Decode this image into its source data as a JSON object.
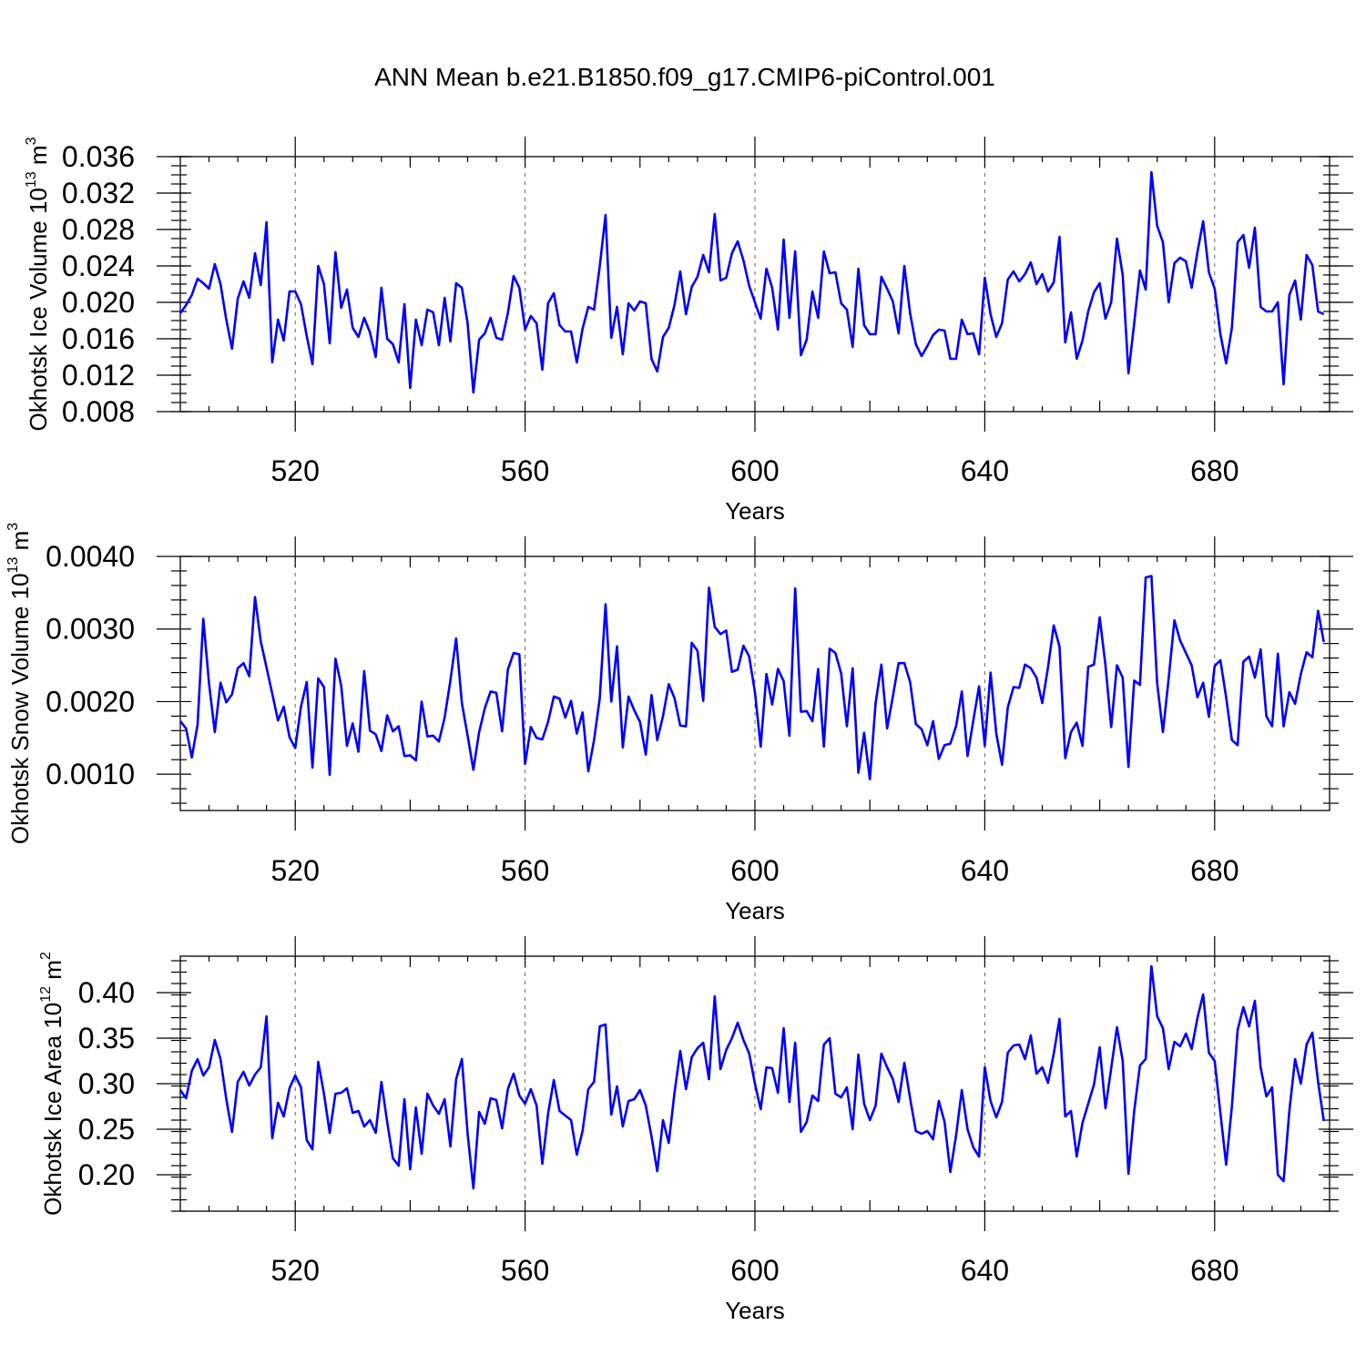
{
  "figure": {
    "title": "ANN Mean b.e21.B1850.f09_g17.CMIP6-piControl.001"
  },
  "chart_data": [
    {
      "type": "line",
      "name": "ice-volume",
      "title": "",
      "xlabel": "Years",
      "ylabel": "Okhotsk Ice Volume 10",
      "ylabel_exp": "13",
      "ylabel_unit": " m",
      "ylabel_unit_exp": "3",
      "xlim": [
        500,
        700
      ],
      "ylim": [
        0.008,
        0.036
      ],
      "xticks": [
        520,
        560,
        600,
        640,
        680
      ],
      "xtick_labels": [
        "520",
        "560",
        "600",
        "640",
        "680"
      ],
      "yticks": [
        0.008,
        0.012,
        0.016,
        0.02,
        0.024,
        0.028,
        0.032,
        0.036
      ],
      "ytick_labels": [
        "0.008",
        "0.012",
        "0.016",
        "0.020",
        "0.024",
        "0.028",
        "0.032",
        "0.036"
      ],
      "grid": "vertical dashed at major x ticks",
      "color": "#0000ff",
      "x_start": 500,
      "values": [
        0.0188,
        0.0197,
        0.0208,
        0.0226,
        0.0221,
        0.0215,
        0.0242,
        0.022,
        0.0181,
        0.0149,
        0.0204,
        0.0223,
        0.0205,
        0.0254,
        0.0219,
        0.0288,
        0.0134,
        0.0181,
        0.0158,
        0.0212,
        0.0212,
        0.0198,
        0.0163,
        0.0132,
        0.024,
        0.022,
        0.0155,
        0.0255,
        0.0194,
        0.0214,
        0.0172,
        0.0162,
        0.0183,
        0.0167,
        0.014,
        0.0216,
        0.016,
        0.0154,
        0.0134,
        0.0198,
        0.0106,
        0.0181,
        0.0153,
        0.0192,
        0.0189,
        0.0153,
        0.0205,
        0.0157,
        0.0221,
        0.0216,
        0.0177,
        0.0101,
        0.0159,
        0.0166,
        0.0183,
        0.0161,
        0.0159,
        0.0188,
        0.0229,
        0.0216,
        0.017,
        0.0185,
        0.0177,
        0.0126,
        0.0199,
        0.021,
        0.0175,
        0.0168,
        0.0168,
        0.0134,
        0.0171,
        0.0195,
        0.0192,
        0.024,
        0.0296,
        0.0161,
        0.0195,
        0.0143,
        0.0199,
        0.0191,
        0.0201,
        0.0199,
        0.0138,
        0.0124,
        0.0162,
        0.0172,
        0.0197,
        0.0234,
        0.0187,
        0.0217,
        0.0228,
        0.0252,
        0.0233,
        0.0297,
        0.0224,
        0.0227,
        0.0254,
        0.0267,
        0.0246,
        0.0218,
        0.02,
        0.0182,
        0.0237,
        0.0216,
        0.017,
        0.0269,
        0.0183,
        0.0256,
        0.0142,
        0.0159,
        0.0212,
        0.0183,
        0.0256,
        0.0232,
        0.0233,
        0.0199,
        0.0192,
        0.0151,
        0.0237,
        0.0175,
        0.0165,
        0.0165,
        0.0228,
        0.0215,
        0.0201,
        0.0166,
        0.024,
        0.0188,
        0.0154,
        0.0141,
        0.0152,
        0.0164,
        0.017,
        0.0169,
        0.0138,
        0.0138,
        0.0181,
        0.0165,
        0.0166,
        0.0143,
        0.0227,
        0.0187,
        0.0162,
        0.0177,
        0.0225,
        0.0234,
        0.0223,
        0.0231,
        0.0244,
        0.022,
        0.0231,
        0.0212,
        0.0222,
        0.0272,
        0.0156,
        0.0189,
        0.0138,
        0.0158,
        0.019,
        0.0211,
        0.0221,
        0.0182,
        0.02,
        0.027,
        0.023,
        0.0122,
        0.0177,
        0.0235,
        0.0214,
        0.0343,
        0.0284,
        0.0266,
        0.02,
        0.0243,
        0.0249,
        0.0245,
        0.0216,
        0.0255,
        0.0289,
        0.0233,
        0.0215,
        0.0165,
        0.0133,
        0.0172,
        0.0266,
        0.0274,
        0.0238,
        0.0282,
        0.0195,
        0.019,
        0.019,
        0.02,
        0.011,
        0.0208,
        0.0224,
        0.0181,
        0.0252,
        0.0241,
        0.019,
        0.0187
      ]
    },
    {
      "type": "line",
      "name": "snow-volume",
      "title": "",
      "xlabel": "Years",
      "ylabel": "Okhotsk Snow Volume 10",
      "ylabel_exp": "13",
      "ylabel_unit": " m",
      "ylabel_unit_exp": "3",
      "xlim": [
        500,
        700
      ],
      "ylim": [
        0.0005,
        0.004
      ],
      "xticks": [
        520,
        560,
        600,
        640,
        680
      ],
      "xtick_labels": [
        "520",
        "560",
        "600",
        "640",
        "680"
      ],
      "yticks": [
        0.001,
        0.002,
        0.003,
        0.004
      ],
      "ytick_labels": [
        "0.0010",
        "0.0020",
        "0.0030",
        "0.0040"
      ],
      "minor_yticks": [
        0.0006,
        0.0008,
        0.0012,
        0.0014,
        0.0016,
        0.0018,
        0.0022,
        0.0024,
        0.0026,
        0.0028,
        0.0032,
        0.0034,
        0.0036,
        0.0038
      ],
      "grid": "vertical dashed at major x ticks",
      "color": "#0000ff",
      "x_start": 500,
      "values": [
        0.00173,
        0.00163,
        0.00123,
        0.00168,
        0.00314,
        0.00225,
        0.00158,
        0.00226,
        0.00199,
        0.0021,
        0.00246,
        0.00253,
        0.00235,
        0.00344,
        0.00283,
        0.00247,
        0.00211,
        0.00174,
        0.00193,
        0.00151,
        0.00136,
        0.00193,
        0.00227,
        0.00109,
        0.00232,
        0.0022,
        0.00099,
        0.00259,
        0.00222,
        0.00139,
        0.0017,
        0.00131,
        0.00242,
        0.0016,
        0.00155,
        0.00132,
        0.00181,
        0.00159,
        0.00166,
        0.00125,
        0.00126,
        0.00119,
        0.002,
        0.00152,
        0.00153,
        0.00145,
        0.00178,
        0.00229,
        0.00287,
        0.00198,
        0.00153,
        0.00106,
        0.00158,
        0.00191,
        0.00214,
        0.00212,
        0.00159,
        0.00244,
        0.00267,
        0.00265,
        0.00114,
        0.00165,
        0.0015,
        0.00148,
        0.00172,
        0.00207,
        0.00204,
        0.00178,
        0.00201,
        0.00156,
        0.00185,
        0.00104,
        0.00147,
        0.00205,
        0.00334,
        0.002,
        0.00276,
        0.00137,
        0.00207,
        0.00188,
        0.00172,
        0.00127,
        0.00209,
        0.00147,
        0.0018,
        0.00224,
        0.00205,
        0.00167,
        0.00166,
        0.00281,
        0.0027,
        0.00201,
        0.00357,
        0.00303,
        0.00293,
        0.00298,
        0.00241,
        0.00244,
        0.00277,
        0.00262,
        0.00213,
        0.00138,
        0.00238,
        0.00196,
        0.00245,
        0.00228,
        0.00153,
        0.00356,
        0.00186,
        0.00187,
        0.00173,
        0.00245,
        0.00138,
        0.00273,
        0.00267,
        0.00239,
        0.00166,
        0.00246,
        0.00102,
        0.00157,
        0.00093,
        0.00198,
        0.00251,
        0.00163,
        0.00207,
        0.00253,
        0.00253,
        0.00227,
        0.00169,
        0.00162,
        0.0014,
        0.00173,
        0.00121,
        0.0014,
        0.00142,
        0.00166,
        0.00214,
        0.00125,
        0.00174,
        0.00221,
        0.00139,
        0.0024,
        0.00156,
        0.00113,
        0.00192,
        0.0022,
        0.00219,
        0.00251,
        0.00246,
        0.00233,
        0.00198,
        0.00247,
        0.00305,
        0.00276,
        0.00122,
        0.00158,
        0.00171,
        0.00139,
        0.00248,
        0.00251,
        0.00316,
        0.0025,
        0.00165,
        0.0025,
        0.00233,
        0.0011,
        0.00229,
        0.00223,
        0.00371,
        0.00373,
        0.00225,
        0.00158,
        0.00232,
        0.00312,
        0.00284,
        0.00267,
        0.0025,
        0.00206,
        0.00226,
        0.00179,
        0.00249,
        0.00257,
        0.00206,
        0.00147,
        0.0014,
        0.00255,
        0.00262,
        0.00233,
        0.00272,
        0.0018,
        0.00166,
        0.00266,
        0.00166,
        0.00213,
        0.00197,
        0.00238,
        0.00268,
        0.00261,
        0.00325,
        0.00282
      ]
    },
    {
      "type": "line",
      "name": "ice-area",
      "title": "",
      "xlabel": "Years",
      "ylabel": "Okhotsk Ice Area 10",
      "ylabel_exp": "12",
      "ylabel_unit": " m",
      "ylabel_unit_exp": "2",
      "xlim": [
        500,
        700
      ],
      "ylim": [
        0.16,
        0.44
      ],
      "xticks": [
        520,
        560,
        600,
        640,
        680
      ],
      "xtick_labels": [
        "520",
        "560",
        "600",
        "640",
        "680"
      ],
      "yticks": [
        0.2,
        0.25,
        0.3,
        0.35,
        0.4
      ],
      "ytick_labels": [
        "0.20",
        "0.25",
        "0.30",
        "0.35",
        "0.40"
      ],
      "grid": "vertical dashed at major x ticks",
      "color": "#0000ff",
      "x_start": 500,
      "values": [
        0.293,
        0.284,
        0.314,
        0.327,
        0.309,
        0.318,
        0.348,
        0.327,
        0.283,
        0.247,
        0.302,
        0.313,
        0.298,
        0.31,
        0.318,
        0.374,
        0.24,
        0.279,
        0.264,
        0.295,
        0.309,
        0.296,
        0.238,
        0.228,
        0.324,
        0.289,
        0.246,
        0.289,
        0.29,
        0.295,
        0.268,
        0.27,
        0.253,
        0.26,
        0.246,
        0.302,
        0.258,
        0.218,
        0.21,
        0.283,
        0.206,
        0.274,
        0.223,
        0.289,
        0.276,
        0.267,
        0.283,
        0.231,
        0.305,
        0.327,
        0.245,
        0.185,
        0.269,
        0.256,
        0.284,
        0.282,
        0.251,
        0.294,
        0.311,
        0.287,
        0.278,
        0.294,
        0.276,
        0.212,
        0.267,
        0.304,
        0.27,
        0.265,
        0.26,
        0.222,
        0.248,
        0.294,
        0.302,
        0.363,
        0.365,
        0.266,
        0.297,
        0.253,
        0.281,
        0.283,
        0.293,
        0.276,
        0.242,
        0.204,
        0.26,
        0.235,
        0.29,
        0.336,
        0.294,
        0.329,
        0.339,
        0.345,
        0.305,
        0.396,
        0.316,
        0.337,
        0.35,
        0.367,
        0.348,
        0.333,
        0.3,
        0.272,
        0.318,
        0.317,
        0.29,
        0.361,
        0.28,
        0.345,
        0.247,
        0.258,
        0.287,
        0.281,
        0.343,
        0.35,
        0.289,
        0.285,
        0.296,
        0.25,
        0.332,
        0.278,
        0.26,
        0.276,
        0.333,
        0.318,
        0.305,
        0.28,
        0.323,
        0.284,
        0.248,
        0.245,
        0.248,
        0.239,
        0.281,
        0.258,
        0.203,
        0.243,
        0.293,
        0.25,
        0.23,
        0.22,
        0.318,
        0.281,
        0.263,
        0.28,
        0.334,
        0.342,
        0.343,
        0.327,
        0.353,
        0.311,
        0.318,
        0.301,
        0.333,
        0.371,
        0.264,
        0.27,
        0.22,
        0.257,
        0.278,
        0.299,
        0.34,
        0.273,
        0.317,
        0.362,
        0.325,
        0.201,
        0.27,
        0.32,
        0.327,
        0.429,
        0.374,
        0.361,
        0.316,
        0.346,
        0.341,
        0.355,
        0.338,
        0.372,
        0.398,
        0.334,
        0.325,
        0.268,
        0.211,
        0.275,
        0.359,
        0.384,
        0.363,
        0.391,
        0.318,
        0.286,
        0.296,
        0.2,
        0.193,
        0.27,
        0.327,
        0.3,
        0.343,
        0.356,
        0.302,
        0.259
      ]
    }
  ]
}
